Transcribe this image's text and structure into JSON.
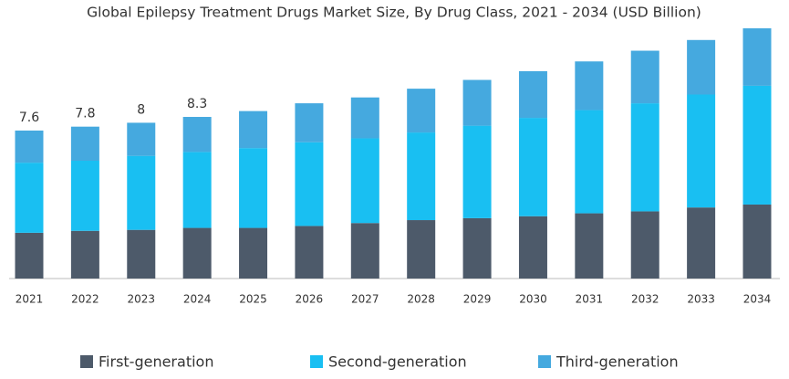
{
  "chart_data": {
    "type": "stacked-bar",
    "title": "Global Epilepsy Treatment Drugs Market Size, By Drug Class, 2021 - 2034 (USD Billion)",
    "categories": [
      "2021",
      "2022",
      "2023",
      "2024",
      "2025",
      "2026",
      "2027",
      "2028",
      "2029",
      "2030",
      "2031",
      "2032",
      "2033",
      "2034"
    ],
    "series": [
      {
        "name": "First-generation",
        "color": "#4d5a6a",
        "values": [
          2.35,
          2.45,
          2.5,
          2.6,
          2.6,
          2.7,
          2.85,
          3.0,
          3.1,
          3.2,
          3.35,
          3.45,
          3.65,
          3.8
        ]
      },
      {
        "name": "Second-generation",
        "color": "#19bff2",
        "values": [
          3.6,
          3.6,
          3.8,
          3.9,
          4.1,
          4.3,
          4.35,
          4.5,
          4.75,
          5.05,
          5.3,
          5.55,
          5.8,
          6.1
        ]
      },
      {
        "name": "Third-generation",
        "color": "#45a9df",
        "values": [
          1.65,
          1.75,
          1.7,
          1.8,
          1.9,
          2.0,
          2.1,
          2.25,
          2.35,
          2.4,
          2.5,
          2.7,
          2.8,
          2.95
        ]
      }
    ],
    "totals": [
      7.6,
      7.8,
      8,
      8.3
    ]
  }
}
